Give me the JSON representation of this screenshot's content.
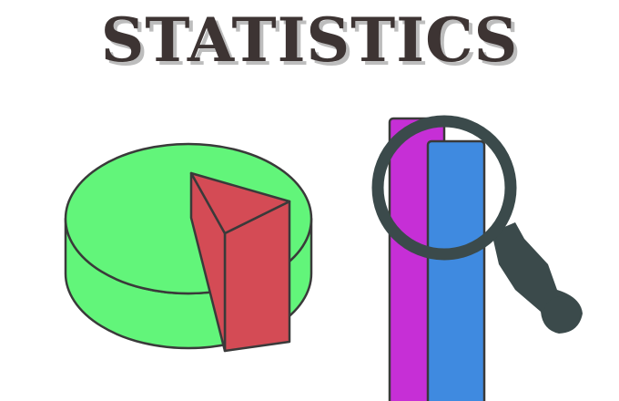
{
  "headline": {
    "text": "STATISTICS"
  },
  "colors": {
    "headline_text": "#3d3433",
    "headline_shadow": "#bdbdbd",
    "pie_main": "#62f57a",
    "pie_slice": "#d44b55",
    "bar_back": "#c62fd6",
    "bar_front": "#3f8ae0",
    "magnifier": "#3b4a4b",
    "outline": "#3a3a3a"
  },
  "illustration": {
    "left_icon": "3d-pie-chart-icon",
    "right_icon": "bar-chart-with-magnifying-glass-icon"
  }
}
